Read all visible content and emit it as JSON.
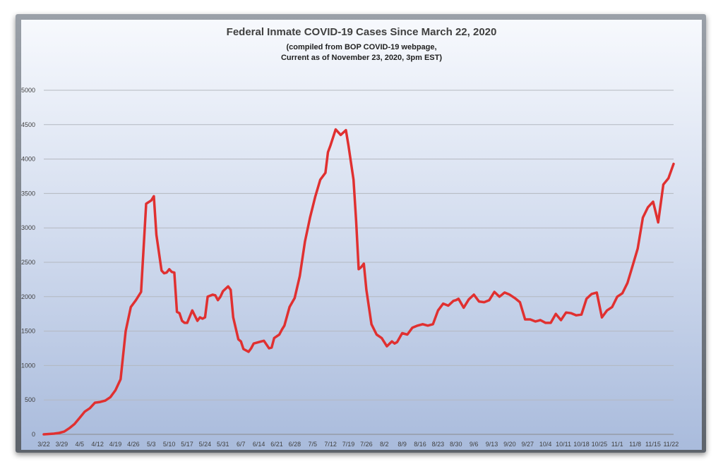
{
  "chart_data": {
    "type": "line",
    "title": "Federal Inmate COVID-19 Cases Since March 22, 2020",
    "subtitle_lines": [
      "(compiled from BOP COVID-19 webpage,",
      "Current as of November 23, 2020, 3pm EST)"
    ],
    "xlabel": "",
    "ylabel": "",
    "ylim": [
      0,
      5000
    ],
    "yticks": [
      0,
      500,
      1000,
      1500,
      2000,
      2500,
      3000,
      3500,
      4000,
      4500,
      5000
    ],
    "xtick_labels": [
      "3/22",
      "3/29",
      "4/5",
      "4/12",
      "4/19",
      "4/26",
      "5/3",
      "5/10",
      "5/17",
      "5/24",
      "5/31",
      "6/7",
      "6/14",
      "6/21",
      "6/28",
      "7/5",
      "7/12",
      "7/19",
      "7/26",
      "8/2",
      "8/9",
      "8/16",
      "8/23",
      "8/30",
      "9/6",
      "9/13",
      "9/20",
      "9/27",
      "10/4",
      "10/11",
      "10/18",
      "10/25",
      "11/1",
      "11/8",
      "11/15",
      "11/22"
    ],
    "grid": true,
    "legend": "none",
    "line_color": "#e03030",
    "series": [
      {
        "x_days": [
          0,
          2,
          4,
          6,
          8,
          10,
          12,
          14,
          16,
          18,
          20,
          22,
          24,
          26,
          28,
          30,
          32,
          34,
          36,
          38,
          40,
          42,
          43,
          44,
          46,
          47,
          48,
          49,
          50,
          51,
          52,
          53,
          54,
          55,
          56,
          58,
          60,
          61,
          62,
          63,
          64,
          66,
          67,
          68,
          69,
          70,
          72,
          73,
          74,
          76,
          77,
          78,
          80,
          81,
          82,
          84,
          85,
          86,
          88,
          89,
          90,
          92,
          93,
          94,
          96,
          98,
          100,
          102,
          104,
          106,
          108,
          110,
          111,
          112,
          114,
          116,
          118,
          119,
          120,
          121,
          122,
          123,
          124,
          125,
          126,
          128,
          130,
          132,
          134,
          136,
          137,
          138,
          140,
          142,
          144,
          146,
          148,
          150,
          152,
          154,
          156,
          158,
          160,
          161,
          162,
          164,
          166,
          168,
          170,
          172,
          174,
          176,
          178,
          180,
          182,
          184,
          186,
          188,
          190,
          192,
          194,
          196,
          198,
          200,
          202,
          204,
          206,
          208,
          210,
          212,
          214,
          216,
          218,
          220,
          222,
          224,
          226,
          228,
          230,
          232,
          234,
          236,
          238,
          240,
          242,
          244,
          246
        ],
        "values": [
          0,
          5,
          10,
          20,
          40,
          90,
          150,
          240,
          330,
          380,
          460,
          470,
          490,
          540,
          640,
          800,
          1500,
          1850,
          1950,
          2070,
          3350,
          3400,
          3460,
          2900,
          2380,
          2340,
          2350,
          2400,
          2360,
          2350,
          1780,
          1760,
          1650,
          1620,
          1620,
          1800,
          1650,
          1700,
          1680,
          1700,
          2000,
          2030,
          2020,
          1950,
          2000,
          2080,
          2150,
          2100,
          1700,
          1380,
          1350,
          1240,
          1200,
          1250,
          1320,
          1340,
          1350,
          1360,
          1250,
          1260,
          1400,
          1450,
          1520,
          1580,
          1850,
          1980,
          2300,
          2800,
          3150,
          3450,
          3700,
          3800,
          4100,
          4200,
          4430,
          4350,
          4420,
          4200,
          3950,
          3700,
          3100,
          2400,
          2430,
          2480,
          2100,
          1600,
          1450,
          1400,
          1280,
          1350,
          1320,
          1340,
          1470,
          1450,
          1550,
          1580,
          1600,
          1580,
          1600,
          1800,
          1900,
          1870,
          1940,
          1950,
          1970,
          1840,
          1960,
          2030,
          1930,
          1920,
          1950,
          2070,
          2000,
          2060,
          2030,
          1980,
          1920,
          1670,
          1670,
          1640,
          1660,
          1620,
          1620,
          1750,
          1660,
          1770,
          1760,
          1730,
          1740,
          1970,
          2040,
          2060,
          1700,
          1800,
          1850,
          2000,
          2050,
          2200,
          2450,
          2700,
          3150,
          3300,
          3380,
          3080,
          3630,
          3720,
          3930
        ]
      }
    ]
  }
}
